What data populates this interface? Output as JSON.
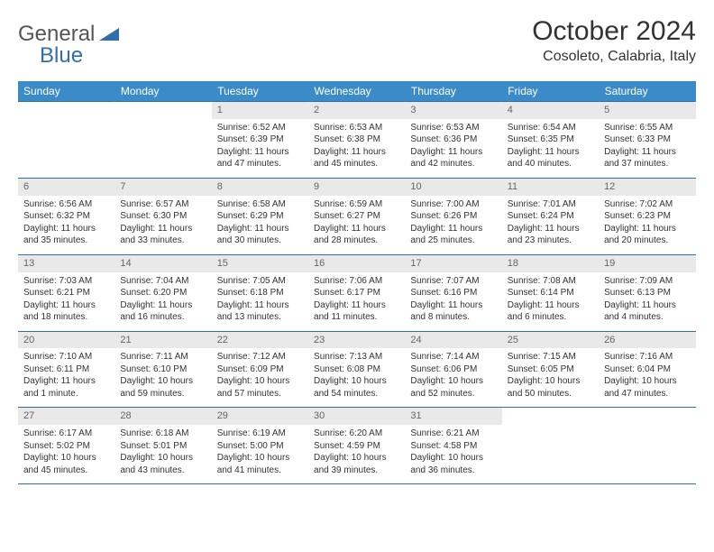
{
  "brand": {
    "text1": "General",
    "text2": "Blue"
  },
  "title": "October 2024",
  "location": "Cosoleto, Calabria, Italy",
  "colors": {
    "header_bg": "#3b8bc9",
    "header_text": "#ffffff",
    "rule": "#2f6fb0",
    "daynum_bg": "#e9e9e9",
    "brand_blue": "#2f6fb0"
  },
  "weekdays": [
    "Sunday",
    "Monday",
    "Tuesday",
    "Wednesday",
    "Thursday",
    "Friday",
    "Saturday"
  ],
  "weeks": [
    [
      {
        "n": "",
        "sr": "",
        "ss": "",
        "dl": ""
      },
      {
        "n": "",
        "sr": "",
        "ss": "",
        "dl": ""
      },
      {
        "n": "1",
        "sr": "Sunrise: 6:52 AM",
        "ss": "Sunset: 6:39 PM",
        "dl": "Daylight: 11 hours and 47 minutes."
      },
      {
        "n": "2",
        "sr": "Sunrise: 6:53 AM",
        "ss": "Sunset: 6:38 PM",
        "dl": "Daylight: 11 hours and 45 minutes."
      },
      {
        "n": "3",
        "sr": "Sunrise: 6:53 AM",
        "ss": "Sunset: 6:36 PM",
        "dl": "Daylight: 11 hours and 42 minutes."
      },
      {
        "n": "4",
        "sr": "Sunrise: 6:54 AM",
        "ss": "Sunset: 6:35 PM",
        "dl": "Daylight: 11 hours and 40 minutes."
      },
      {
        "n": "5",
        "sr": "Sunrise: 6:55 AM",
        "ss": "Sunset: 6:33 PM",
        "dl": "Daylight: 11 hours and 37 minutes."
      }
    ],
    [
      {
        "n": "6",
        "sr": "Sunrise: 6:56 AM",
        "ss": "Sunset: 6:32 PM",
        "dl": "Daylight: 11 hours and 35 minutes."
      },
      {
        "n": "7",
        "sr": "Sunrise: 6:57 AM",
        "ss": "Sunset: 6:30 PM",
        "dl": "Daylight: 11 hours and 33 minutes."
      },
      {
        "n": "8",
        "sr": "Sunrise: 6:58 AM",
        "ss": "Sunset: 6:29 PM",
        "dl": "Daylight: 11 hours and 30 minutes."
      },
      {
        "n": "9",
        "sr": "Sunrise: 6:59 AM",
        "ss": "Sunset: 6:27 PM",
        "dl": "Daylight: 11 hours and 28 minutes."
      },
      {
        "n": "10",
        "sr": "Sunrise: 7:00 AM",
        "ss": "Sunset: 6:26 PM",
        "dl": "Daylight: 11 hours and 25 minutes."
      },
      {
        "n": "11",
        "sr": "Sunrise: 7:01 AM",
        "ss": "Sunset: 6:24 PM",
        "dl": "Daylight: 11 hours and 23 minutes."
      },
      {
        "n": "12",
        "sr": "Sunrise: 7:02 AM",
        "ss": "Sunset: 6:23 PM",
        "dl": "Daylight: 11 hours and 20 minutes."
      }
    ],
    [
      {
        "n": "13",
        "sr": "Sunrise: 7:03 AM",
        "ss": "Sunset: 6:21 PM",
        "dl": "Daylight: 11 hours and 18 minutes."
      },
      {
        "n": "14",
        "sr": "Sunrise: 7:04 AM",
        "ss": "Sunset: 6:20 PM",
        "dl": "Daylight: 11 hours and 16 minutes."
      },
      {
        "n": "15",
        "sr": "Sunrise: 7:05 AM",
        "ss": "Sunset: 6:18 PM",
        "dl": "Daylight: 11 hours and 13 minutes."
      },
      {
        "n": "16",
        "sr": "Sunrise: 7:06 AM",
        "ss": "Sunset: 6:17 PM",
        "dl": "Daylight: 11 hours and 11 minutes."
      },
      {
        "n": "17",
        "sr": "Sunrise: 7:07 AM",
        "ss": "Sunset: 6:16 PM",
        "dl": "Daylight: 11 hours and 8 minutes."
      },
      {
        "n": "18",
        "sr": "Sunrise: 7:08 AM",
        "ss": "Sunset: 6:14 PM",
        "dl": "Daylight: 11 hours and 6 minutes."
      },
      {
        "n": "19",
        "sr": "Sunrise: 7:09 AM",
        "ss": "Sunset: 6:13 PM",
        "dl": "Daylight: 11 hours and 4 minutes."
      }
    ],
    [
      {
        "n": "20",
        "sr": "Sunrise: 7:10 AM",
        "ss": "Sunset: 6:11 PM",
        "dl": "Daylight: 11 hours and 1 minute."
      },
      {
        "n": "21",
        "sr": "Sunrise: 7:11 AM",
        "ss": "Sunset: 6:10 PM",
        "dl": "Daylight: 10 hours and 59 minutes."
      },
      {
        "n": "22",
        "sr": "Sunrise: 7:12 AM",
        "ss": "Sunset: 6:09 PM",
        "dl": "Daylight: 10 hours and 57 minutes."
      },
      {
        "n": "23",
        "sr": "Sunrise: 7:13 AM",
        "ss": "Sunset: 6:08 PM",
        "dl": "Daylight: 10 hours and 54 minutes."
      },
      {
        "n": "24",
        "sr": "Sunrise: 7:14 AM",
        "ss": "Sunset: 6:06 PM",
        "dl": "Daylight: 10 hours and 52 minutes."
      },
      {
        "n": "25",
        "sr": "Sunrise: 7:15 AM",
        "ss": "Sunset: 6:05 PM",
        "dl": "Daylight: 10 hours and 50 minutes."
      },
      {
        "n": "26",
        "sr": "Sunrise: 7:16 AM",
        "ss": "Sunset: 6:04 PM",
        "dl": "Daylight: 10 hours and 47 minutes."
      }
    ],
    [
      {
        "n": "27",
        "sr": "Sunrise: 6:17 AM",
        "ss": "Sunset: 5:02 PM",
        "dl": "Daylight: 10 hours and 45 minutes."
      },
      {
        "n": "28",
        "sr": "Sunrise: 6:18 AM",
        "ss": "Sunset: 5:01 PM",
        "dl": "Daylight: 10 hours and 43 minutes."
      },
      {
        "n": "29",
        "sr": "Sunrise: 6:19 AM",
        "ss": "Sunset: 5:00 PM",
        "dl": "Daylight: 10 hours and 41 minutes."
      },
      {
        "n": "30",
        "sr": "Sunrise: 6:20 AM",
        "ss": "Sunset: 4:59 PM",
        "dl": "Daylight: 10 hours and 39 minutes."
      },
      {
        "n": "31",
        "sr": "Sunrise: 6:21 AM",
        "ss": "Sunset: 4:58 PM",
        "dl": "Daylight: 10 hours and 36 minutes."
      },
      {
        "n": "",
        "sr": "",
        "ss": "",
        "dl": ""
      },
      {
        "n": "",
        "sr": "",
        "ss": "",
        "dl": ""
      }
    ]
  ]
}
